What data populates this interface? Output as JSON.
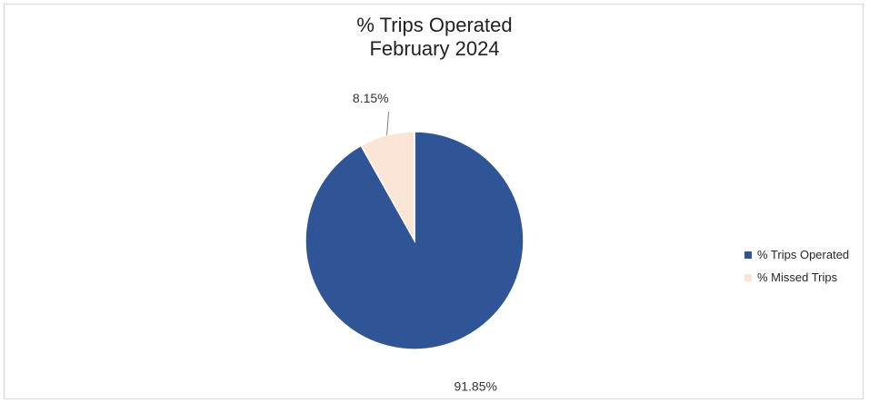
{
  "chart_data": {
    "type": "pie",
    "title": "% Trips Operated",
    "subtitle": "February 2024",
    "slices": [
      {
        "name": "% Trips Operated",
        "value": 91.85,
        "label": "91.85%",
        "color": "#2f5597"
      },
      {
        "name": "% Missed Trips",
        "value": 8.15,
        "label": "8.15%",
        "color": "#fbe5d6"
      }
    ],
    "legend": "right"
  }
}
